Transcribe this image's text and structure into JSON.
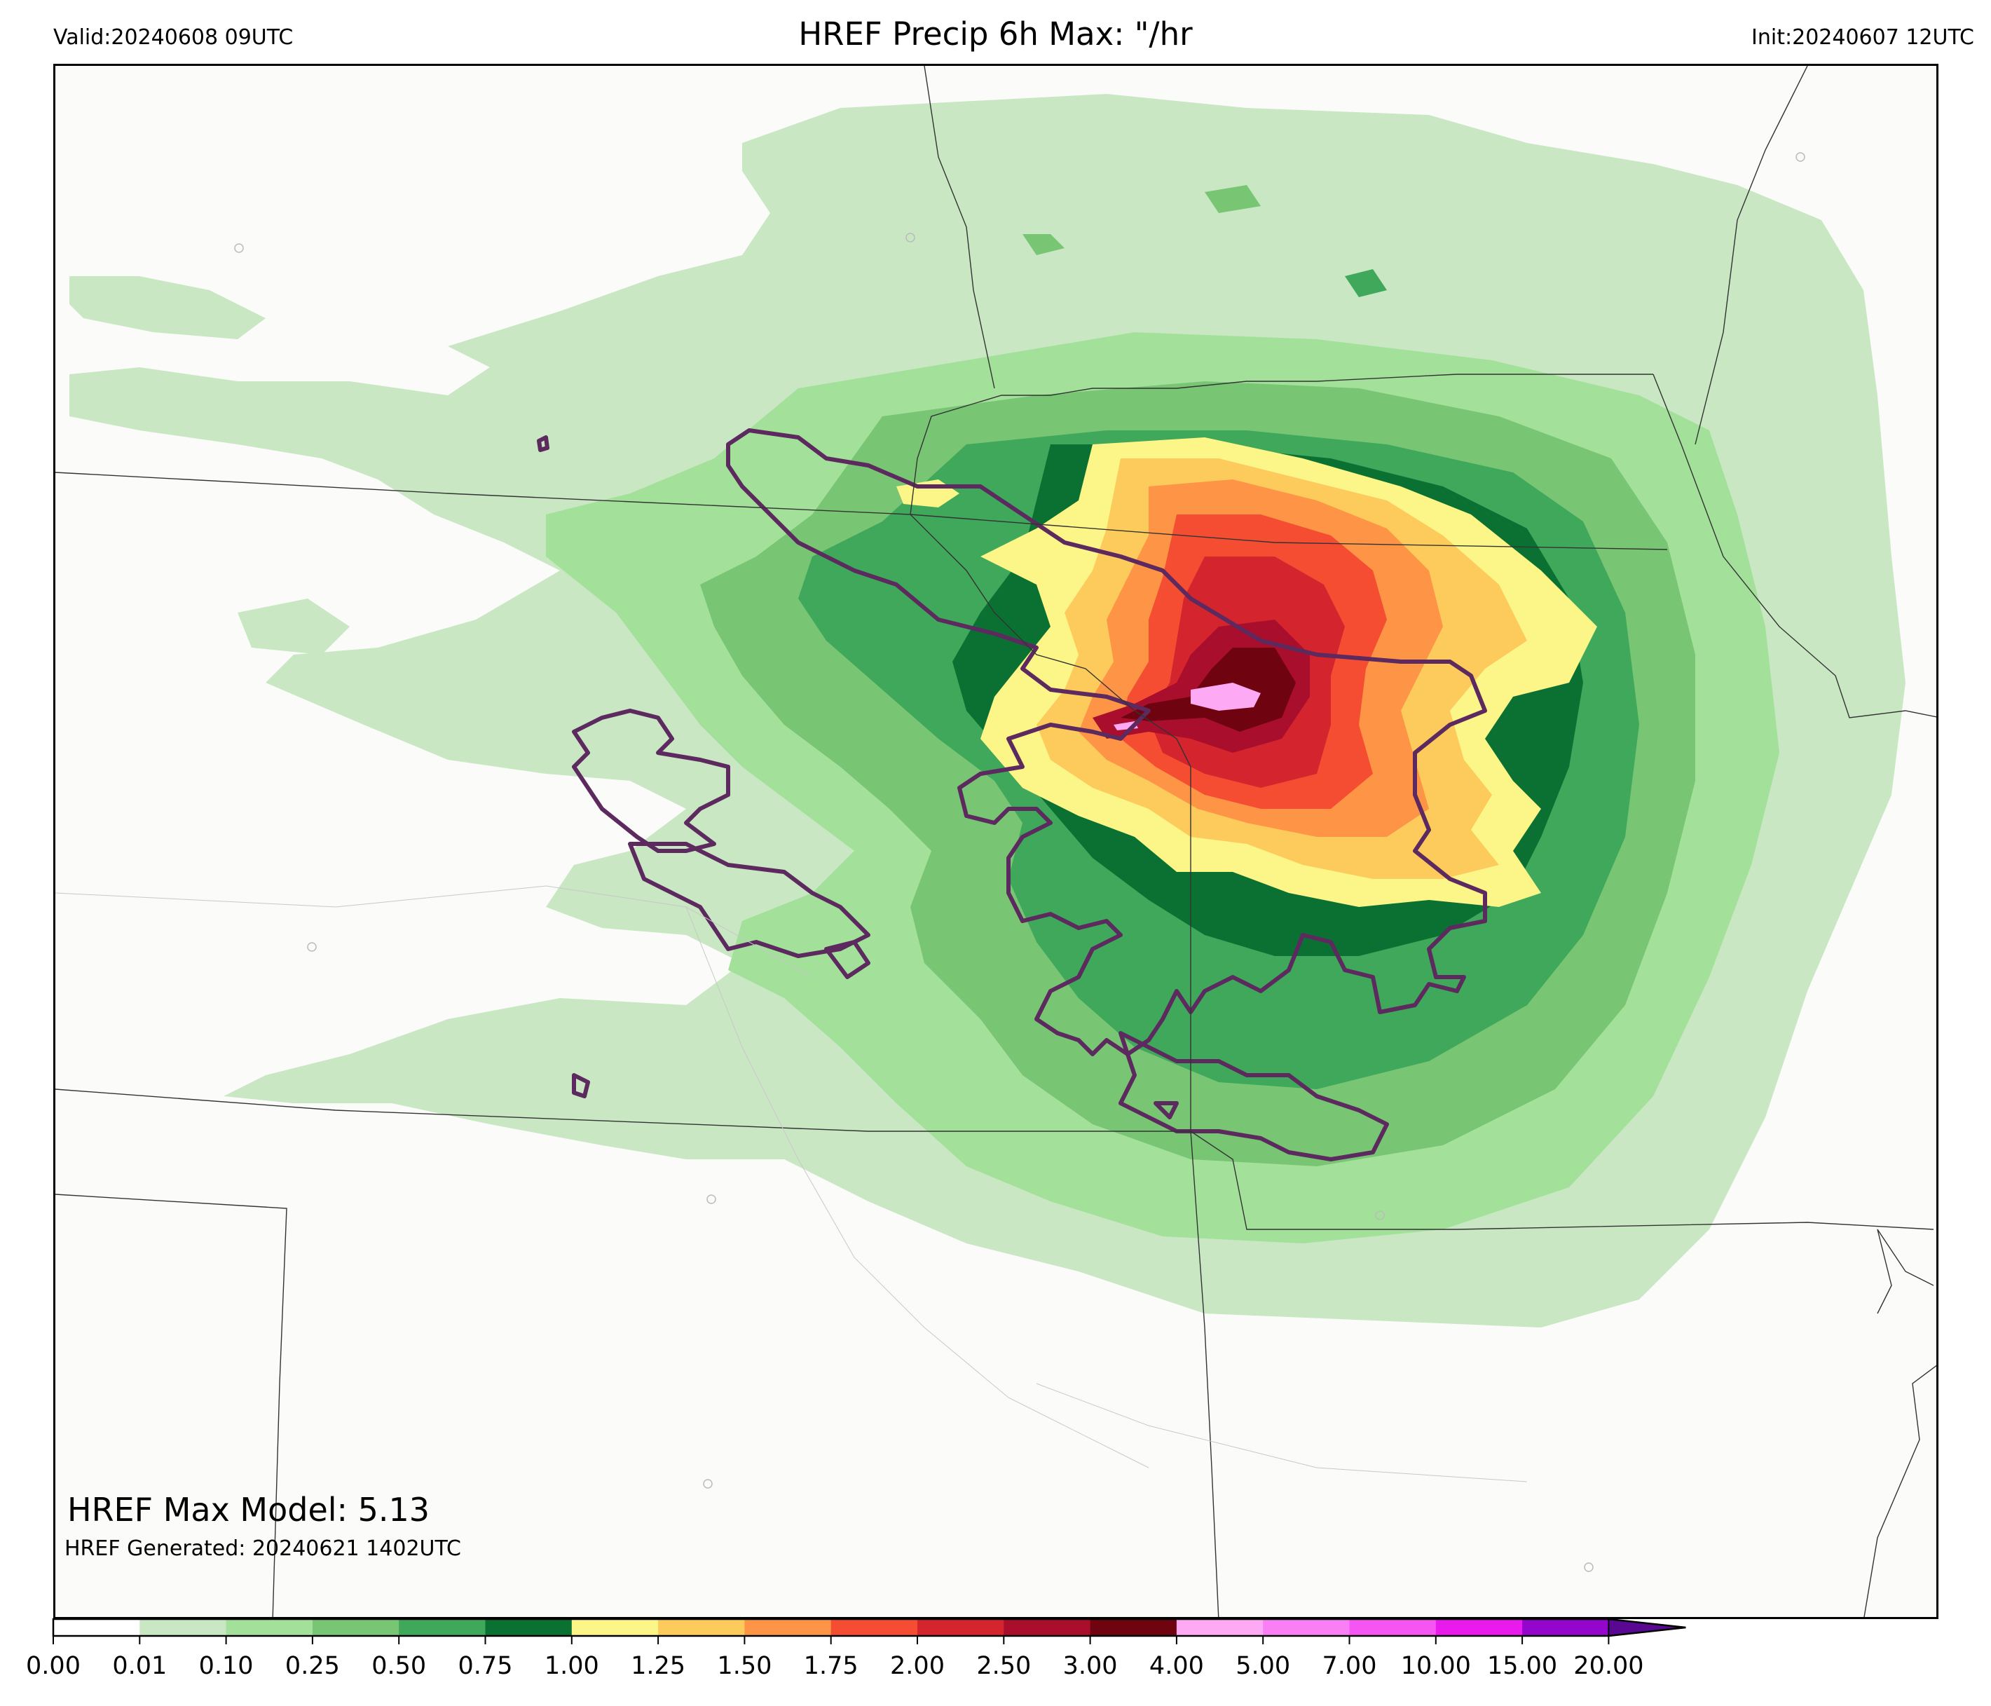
{
  "header": {
    "valid": "Valid:20240608 09UTC",
    "title": "HREF Precip 6h Max: \"/hr",
    "init": "Init:20240607 12UTC"
  },
  "annotations": {
    "max_model": "HREF Max Model: 5.13",
    "generated": "HREF Generated: 20240621 1402UTC"
  },
  "colorbar": {
    "levels": [
      "0.00",
      "0.01",
      "0.10",
      "0.25",
      "0.50",
      "0.75",
      "1.00",
      "1.25",
      "1.50",
      "1.75",
      "2.00",
      "2.50",
      "3.00",
      "4.00",
      "5.00",
      "7.00",
      "10.00",
      "15.00",
      "20.00"
    ],
    "colors": [
      "#ffffff",
      "#c9e7c3",
      "#a3e19b",
      "#78c574",
      "#3fa85a",
      "#0b7132",
      "#fcf587",
      "#fdcb5c",
      "#fd9446",
      "#f44d32",
      "#d4252f",
      "#a90e2d",
      "#6f0410",
      "#fda9f3",
      "#fb7ff4",
      "#f555f2",
      "#e91bec",
      "#9406cb"
    ],
    "extend_color": "#5a0891"
  }
}
